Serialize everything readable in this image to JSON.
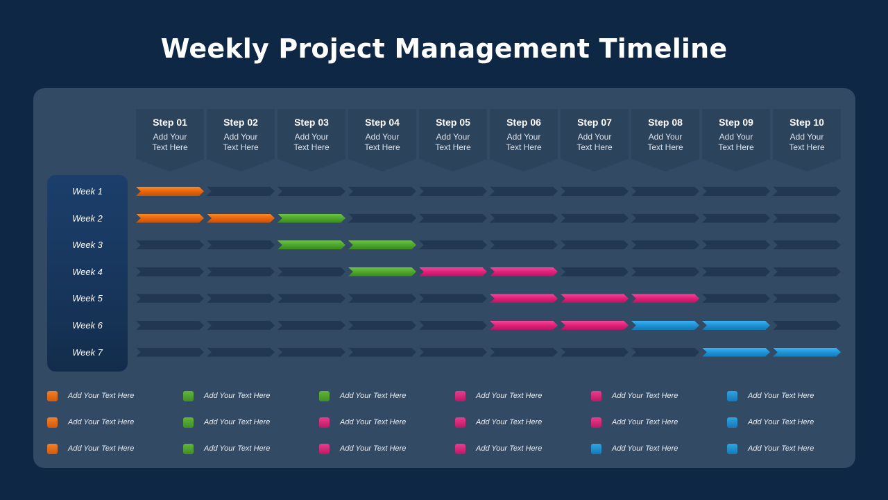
{
  "title": "Weekly Project Management Timeline",
  "colors": {
    "orange": "#e8650c",
    "green": "#4ea82c",
    "pink": "#e01f79",
    "blue": "#1e93d6",
    "empty": "#223752",
    "background": "#0e2744",
    "panel": "#324a64"
  },
  "steps": [
    {
      "title": "Step 01",
      "desc": "Add Your Text Here"
    },
    {
      "title": "Step 02",
      "desc": "Add Your Text Here"
    },
    {
      "title": "Step 03",
      "desc": "Add Your Text Here"
    },
    {
      "title": "Step 04",
      "desc": "Add Your Text Here"
    },
    {
      "title": "Step 05",
      "desc": "Add Your Text Here"
    },
    {
      "title": "Step 06",
      "desc": "Add Your Text Here"
    },
    {
      "title": "Step 07",
      "desc": "Add Your Text Here"
    },
    {
      "title": "Step 08",
      "desc": "Add Your Text Here"
    },
    {
      "title": "Step 09",
      "desc": "Add Your Text Here"
    },
    {
      "title": "Step 10",
      "desc": "Add Your Text Here"
    }
  ],
  "weeks": [
    {
      "label": "Week 1",
      "cells": [
        "orange",
        "empty",
        "empty",
        "empty",
        "empty",
        "empty",
        "empty",
        "empty",
        "empty",
        "empty"
      ]
    },
    {
      "label": "Week 2",
      "cells": [
        "orange",
        "orange",
        "green",
        "empty",
        "empty",
        "empty",
        "empty",
        "empty",
        "empty",
        "empty"
      ]
    },
    {
      "label": "Week 3",
      "cells": [
        "empty",
        "empty",
        "green",
        "green",
        "empty",
        "empty",
        "empty",
        "empty",
        "empty",
        "empty"
      ]
    },
    {
      "label": "Week 4",
      "cells": [
        "empty",
        "empty",
        "empty",
        "green",
        "pink",
        "pink",
        "empty",
        "empty",
        "empty",
        "empty"
      ]
    },
    {
      "label": "Week 5",
      "cells": [
        "empty",
        "empty",
        "empty",
        "empty",
        "empty",
        "pink",
        "pink",
        "pink",
        "empty",
        "empty"
      ]
    },
    {
      "label": "Week 6",
      "cells": [
        "empty",
        "empty",
        "empty",
        "empty",
        "empty",
        "pink",
        "pink",
        "blue",
        "blue",
        "empty"
      ]
    },
    {
      "label": "Week 7",
      "cells": [
        "empty",
        "empty",
        "empty",
        "empty",
        "empty",
        "empty",
        "empty",
        "empty",
        "blue",
        "blue"
      ]
    }
  ],
  "legend": [
    [
      {
        "color": "orange",
        "text": "Add Your Text Here"
      },
      {
        "color": "green",
        "text": "Add Your Text Here"
      },
      {
        "color": "green",
        "text": "Add Your Text Here"
      },
      {
        "color": "pink",
        "text": "Add Your Text Here"
      },
      {
        "color": "pink",
        "text": "Add Your Text Here"
      },
      {
        "color": "blue",
        "text": "Add Your Text Here"
      }
    ],
    [
      {
        "color": "orange",
        "text": "Add Your Text Here"
      },
      {
        "color": "green",
        "text": "Add Your Text Here"
      },
      {
        "color": "pink",
        "text": "Add Your Text Here"
      },
      {
        "color": "pink",
        "text": "Add Your Text Here"
      },
      {
        "color": "pink",
        "text": "Add Your Text Here"
      },
      {
        "color": "blue",
        "text": "Add Your Text Here"
      }
    ],
    [
      {
        "color": "orange",
        "text": "Add Your Text Here"
      },
      {
        "color": "green",
        "text": "Add Your Text Here"
      },
      {
        "color": "pink",
        "text": "Add Your Text Here"
      },
      {
        "color": "pink",
        "text": "Add Your Text Here"
      },
      {
        "color": "blue",
        "text": "Add Your Text Here"
      },
      {
        "color": "blue",
        "text": "Add Your Text Here"
      }
    ]
  ]
}
